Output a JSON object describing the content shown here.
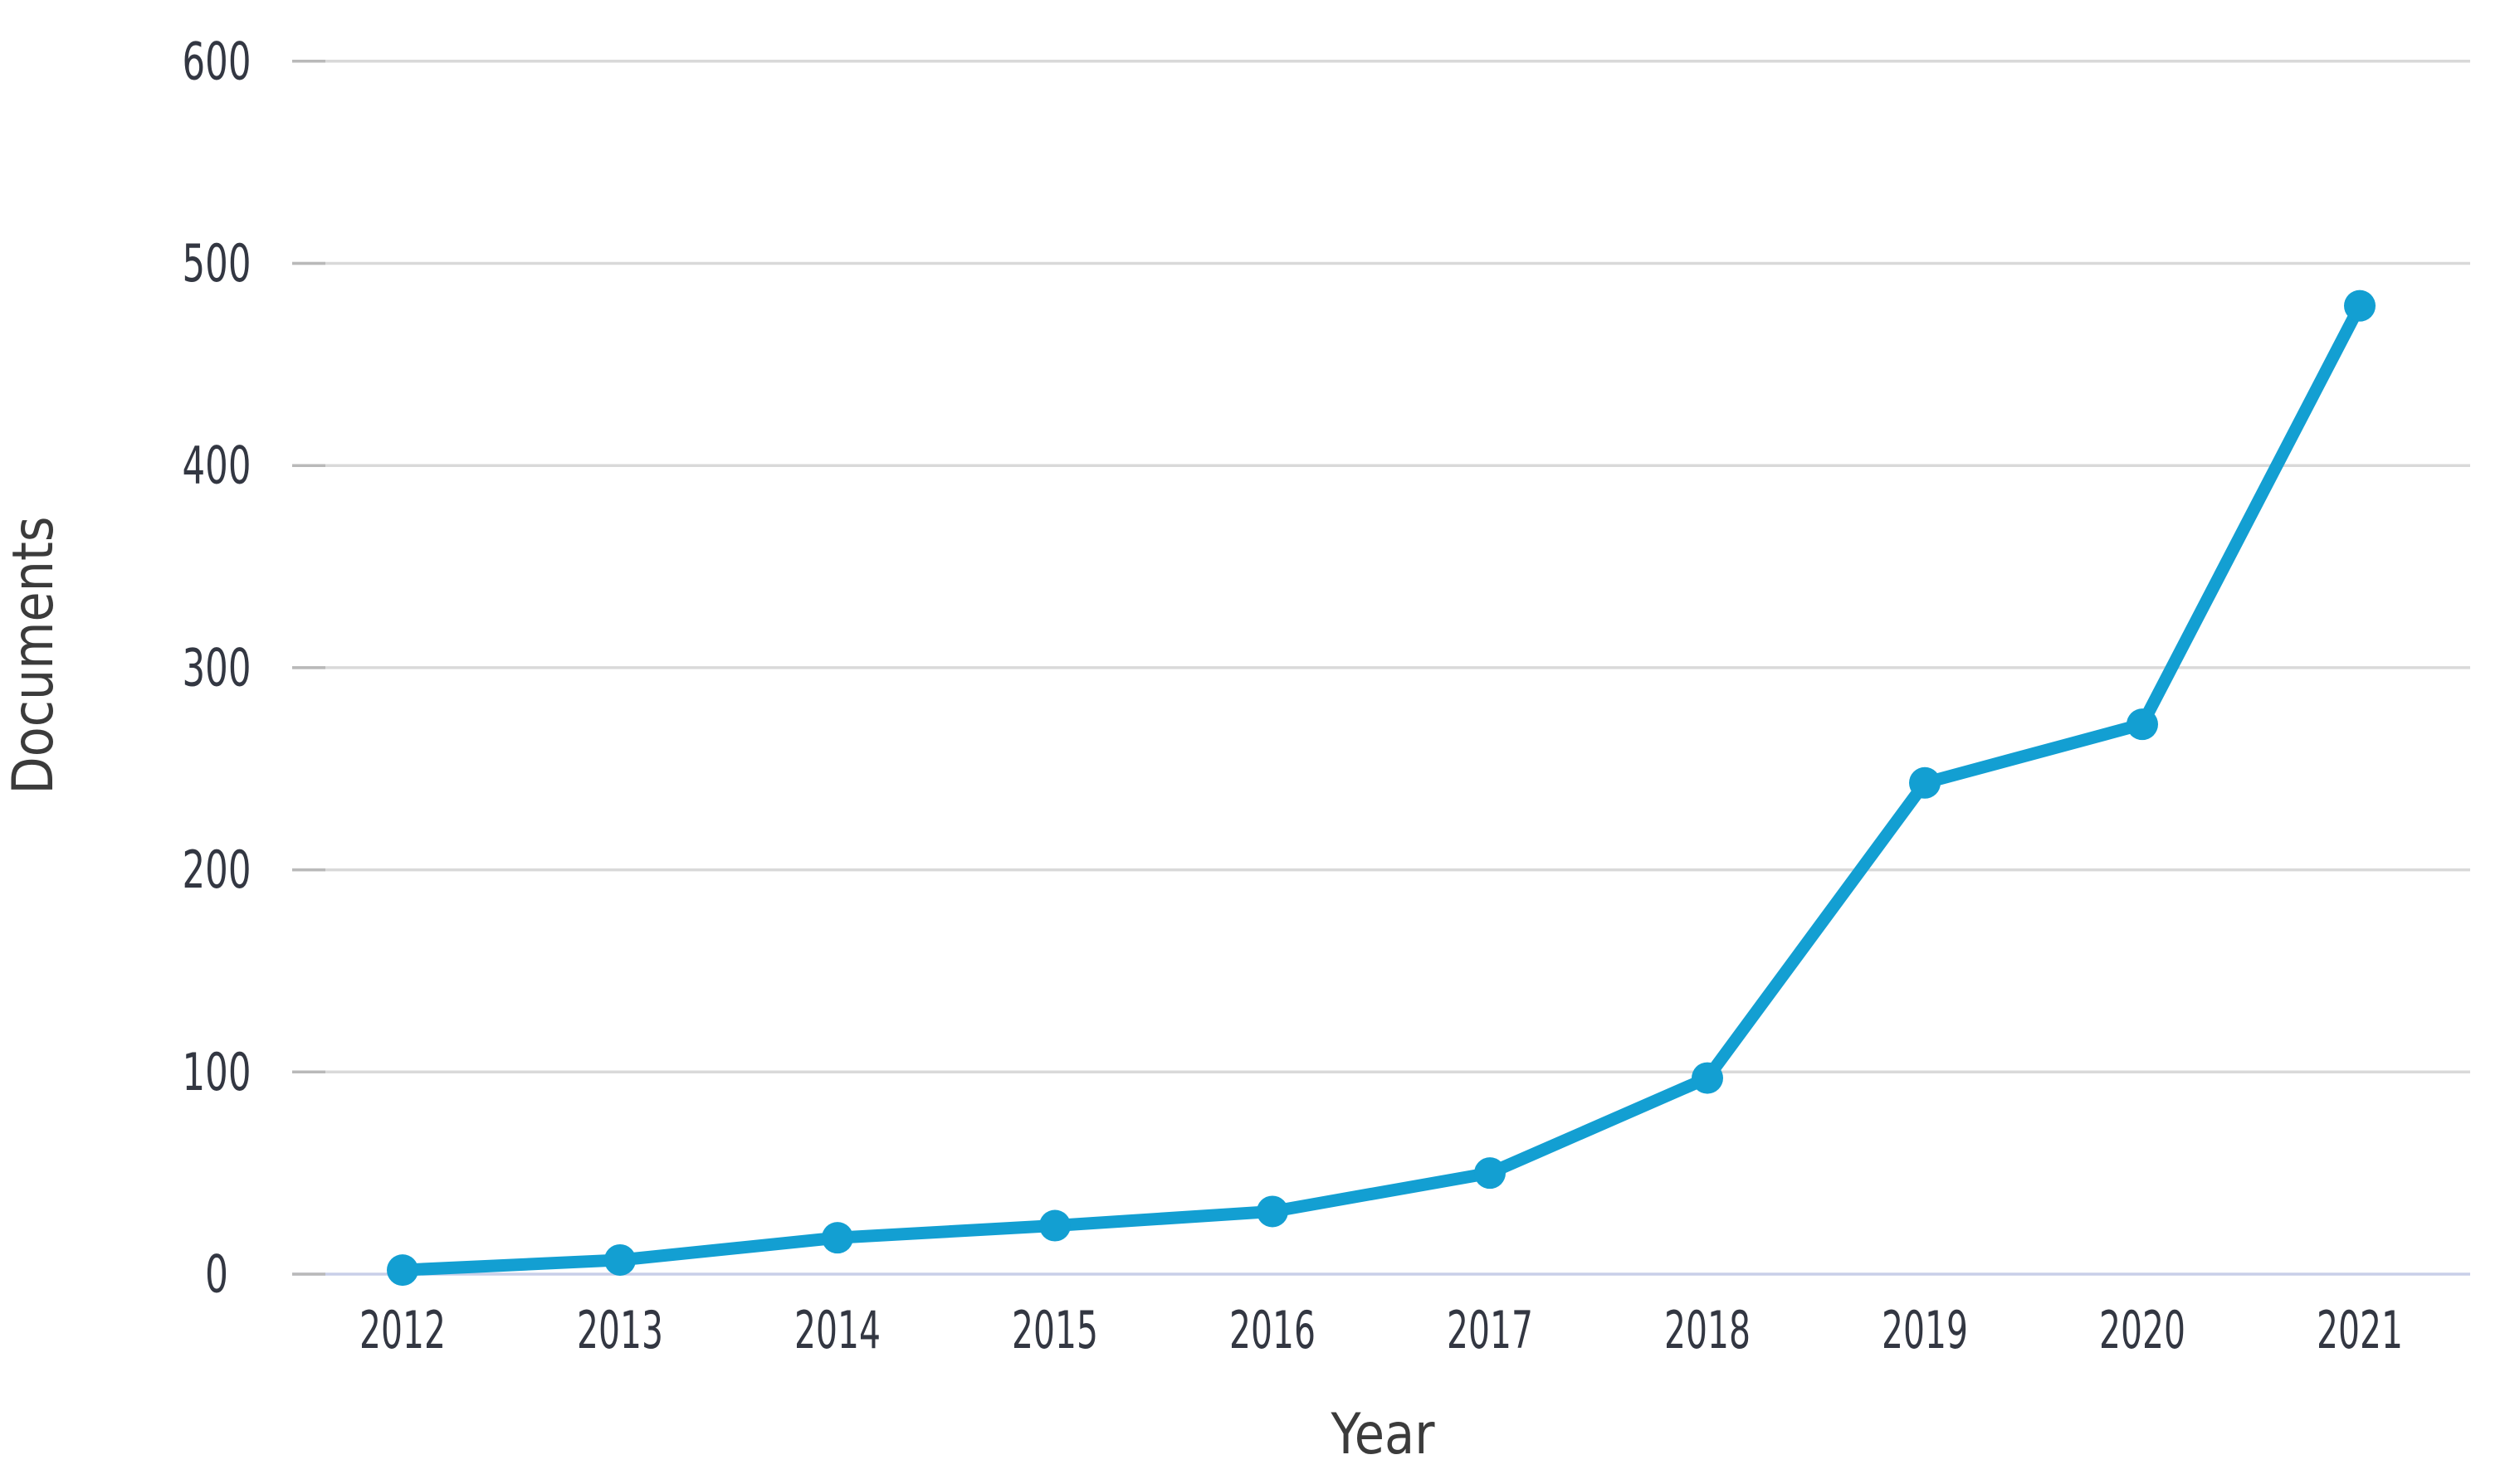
{
  "chart_data": {
    "type": "line",
    "title": "",
    "xlabel": "Year",
    "ylabel": "Documents",
    "categories": [
      "2012",
      "2013",
      "2014",
      "2015",
      "2016",
      "2017",
      "2018",
      "2019",
      "2020",
      "2021"
    ],
    "series": [
      {
        "name": "Documents",
        "values": [
          2,
          7,
          18,
          24,
          31,
          50,
          97,
          243,
          272,
          479
        ]
      }
    ],
    "ylim": [
      0,
      600
    ],
    "y_ticks": [
      0,
      100,
      200,
      300,
      400,
      500,
      600
    ],
    "grid": "horizontal",
    "legend": "none",
    "marker": "circle",
    "colors": {
      "line": "#139fd2",
      "marker": "#139fd2",
      "gridline": "#d9d9d9",
      "tick_stub": "#b9b9b9",
      "baseline": "#c9cfe8",
      "tick_text": "#333742",
      "title_text": "#3b3b3b",
      "background": "#ffffff"
    }
  }
}
